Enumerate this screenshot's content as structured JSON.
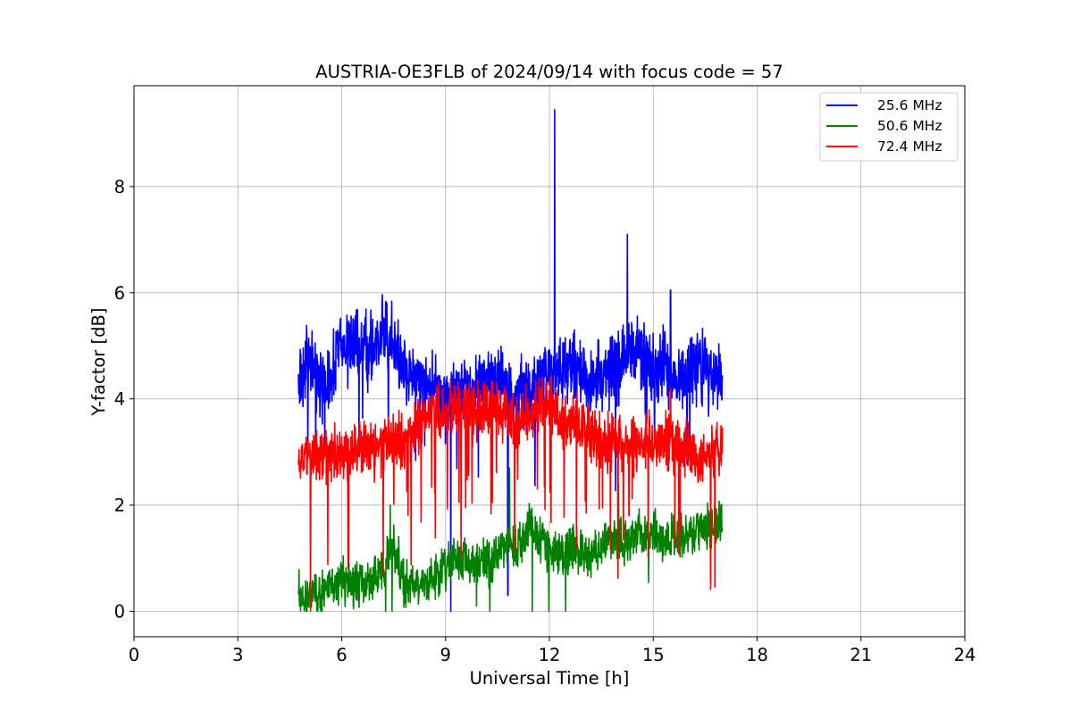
{
  "chart_data": {
    "type": "line",
    "title": "AUSTRIA-OE3FLB of 2024/09/14 with focus code = 57",
    "xlabel": "Universal Time [h]",
    "ylabel": "Y-factor [dB]",
    "xlim": [
      0,
      24
    ],
    "ylim": [
      -0.48,
      9.9
    ],
    "x_ticks": [
      0,
      3,
      6,
      9,
      12,
      15,
      18,
      21,
      24
    ],
    "y_ticks": [
      0,
      2,
      4,
      6,
      8
    ],
    "grid": true,
    "legend_position": "top-right",
    "series": [
      {
        "name": "25.6 MHz",
        "color": "#0000ff",
        "x_range": [
          4.75,
          17.0
        ],
        "approx_points": [
          [
            4.75,
            4.3
          ],
          [
            5.0,
            4.8
          ],
          [
            5.3,
            4.4
          ],
          [
            5.6,
            4.2
          ],
          [
            5.9,
            5.0
          ],
          [
            6.3,
            5.1
          ],
          [
            6.6,
            5.0
          ],
          [
            7.0,
            5.1
          ],
          [
            7.3,
            5.3
          ],
          [
            7.6,
            4.8
          ],
          [
            8.0,
            4.5
          ],
          [
            8.4,
            4.3
          ],
          [
            8.8,
            4.2
          ],
          [
            9.0,
            3.9
          ],
          [
            9.15,
            4.0
          ],
          [
            9.5,
            4.1
          ],
          [
            10.0,
            4.2
          ],
          [
            10.5,
            4.4
          ],
          [
            10.8,
            4.2
          ],
          [
            11.0,
            4.0
          ],
          [
            11.5,
            4.2
          ],
          [
            12.0,
            4.5
          ],
          [
            12.2,
            4.5
          ],
          [
            12.5,
            4.6
          ],
          [
            13.0,
            4.5
          ],
          [
            13.5,
            4.4
          ],
          [
            14.0,
            4.6
          ],
          [
            14.3,
            4.9
          ],
          [
            14.7,
            4.8
          ],
          [
            15.0,
            4.5
          ],
          [
            15.3,
            4.7
          ],
          [
            15.6,
            4.4
          ],
          [
            16.0,
            4.5
          ],
          [
            16.5,
            4.6
          ],
          [
            17.0,
            4.3
          ]
        ],
        "spikes": [
          [
            12.15,
            9.45
          ],
          [
            14.25,
            7.1
          ],
          [
            15.5,
            6.05
          ],
          [
            9.15,
            0.0
          ],
          [
            10.8,
            0.3
          ],
          [
            7.35,
            3.1
          ]
        ]
      },
      {
        "name": "50.6 MHz",
        "color": "#008000",
        "x_range": [
          4.75,
          17.0
        ],
        "approx_points": [
          [
            4.75,
            0.3
          ],
          [
            5.0,
            0.25
          ],
          [
            5.5,
            0.35
          ],
          [
            6.0,
            0.6
          ],
          [
            6.5,
            0.5
          ],
          [
            7.0,
            0.6
          ],
          [
            7.5,
            1.3
          ],
          [
            7.8,
            0.5
          ],
          [
            8.3,
            0.5
          ],
          [
            8.8,
            0.7
          ],
          [
            9.3,
            1.0
          ],
          [
            9.8,
            0.9
          ],
          [
            10.3,
            0.9
          ],
          [
            10.8,
            1.3
          ],
          [
            11.0,
            1.2
          ],
          [
            11.5,
            1.6
          ],
          [
            12.0,
            1.1
          ],
          [
            12.3,
            1.1
          ],
          [
            12.7,
            1.2
          ],
          [
            13.2,
            1.0
          ],
          [
            13.7,
            1.4
          ],
          [
            14.2,
            1.3
          ],
          [
            14.7,
            1.5
          ],
          [
            15.2,
            1.4
          ],
          [
            15.7,
            1.4
          ],
          [
            16.2,
            1.5
          ],
          [
            16.7,
            1.6
          ],
          [
            17.0,
            1.6
          ]
        ],
        "spikes": [
          [
            7.4,
            2.0
          ],
          [
            10.85,
            2.7
          ],
          [
            14.0,
            2.4
          ]
        ]
      },
      {
        "name": "72.4 MHz",
        "color": "#ff0000",
        "x_range": [
          4.75,
          17.0
        ],
        "approx_points": [
          [
            4.75,
            2.8
          ],
          [
            5.0,
            2.9
          ],
          [
            5.5,
            3.0
          ],
          [
            6.0,
            3.0
          ],
          [
            6.5,
            3.1
          ],
          [
            7.0,
            3.1
          ],
          [
            7.5,
            3.2
          ],
          [
            8.0,
            3.3
          ],
          [
            8.5,
            3.7
          ],
          [
            9.0,
            3.8
          ],
          [
            9.5,
            3.8
          ],
          [
            10.0,
            3.8
          ],
          [
            10.5,
            3.8
          ],
          [
            11.0,
            3.6
          ],
          [
            11.5,
            3.7
          ],
          [
            12.0,
            3.9
          ],
          [
            12.5,
            3.5
          ],
          [
            13.0,
            3.5
          ],
          [
            13.5,
            3.2
          ],
          [
            14.0,
            3.2
          ],
          [
            14.5,
            3.1
          ],
          [
            15.0,
            3.2
          ],
          [
            15.5,
            3.2
          ],
          [
            16.0,
            3.0
          ],
          [
            16.5,
            2.9
          ],
          [
            17.0,
            3.0
          ]
        ],
        "spikes": [
          [
            5.1,
            0.0
          ],
          [
            6.2,
            0.9
          ],
          [
            7.2,
            0.7
          ],
          [
            15.5,
            4.2
          ],
          [
            14.3,
            1.8
          ]
        ]
      }
    ]
  }
}
